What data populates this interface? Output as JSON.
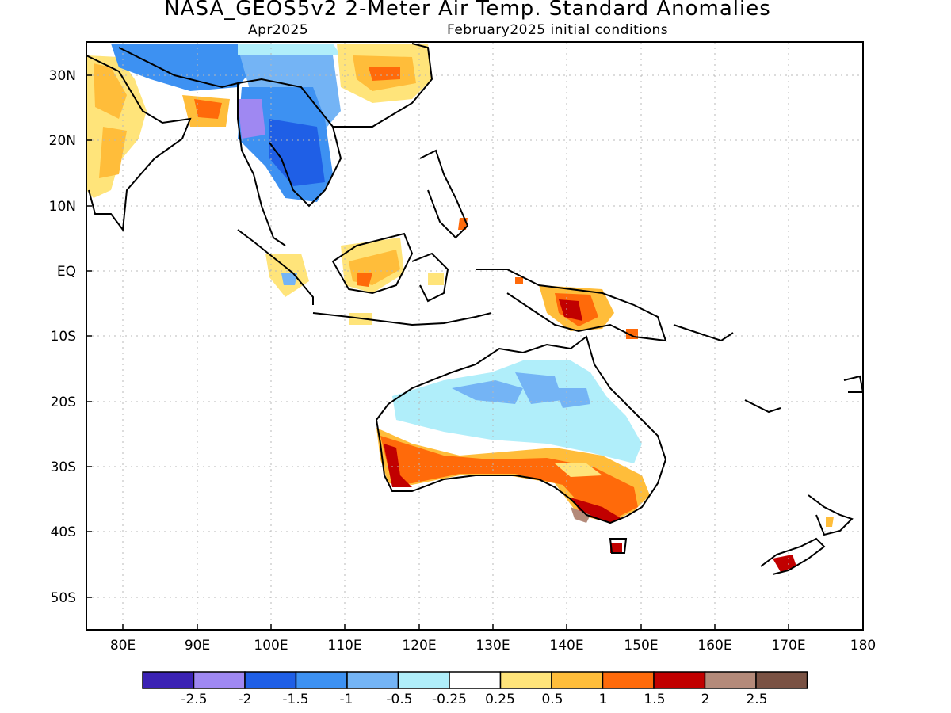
{
  "header": {
    "title": "NASA_GEOS5v2 2-Meter Air Temp. Standard Anomalies",
    "valid_month": "Apr2025",
    "initial_conditions": "February2025 initial conditions"
  },
  "map": {
    "lon_range": [
      75,
      180
    ],
    "lat_range": [
      -55,
      35
    ],
    "lon_ticks": [
      "80E",
      "90E",
      "100E",
      "110E",
      "120E",
      "130E",
      "140E",
      "150E",
      "160E",
      "170E",
      "180"
    ],
    "lat_ticks": [
      "30N",
      "20N",
      "10N",
      "EQ",
      "10S",
      "20S",
      "30S",
      "40S",
      "50S"
    ]
  },
  "legend": {
    "colors": [
      "#3b22b4",
      "#9f88f2",
      "#1f5fe6",
      "#3d91f2",
      "#74b4f5",
      "#b0eefa",
      "#ffffff",
      "#ffe47a",
      "#ffbd3a",
      "#ff6a0a",
      "#c10000",
      "#b48a7a",
      "#7a5244"
    ],
    "labels": [
      "-2.5",
      "-2",
      "-1.5",
      "-1",
      "-0.5",
      "-0.25",
      "0.25",
      "0.5",
      "1",
      "1.5",
      "2",
      "2.5"
    ]
  }
}
